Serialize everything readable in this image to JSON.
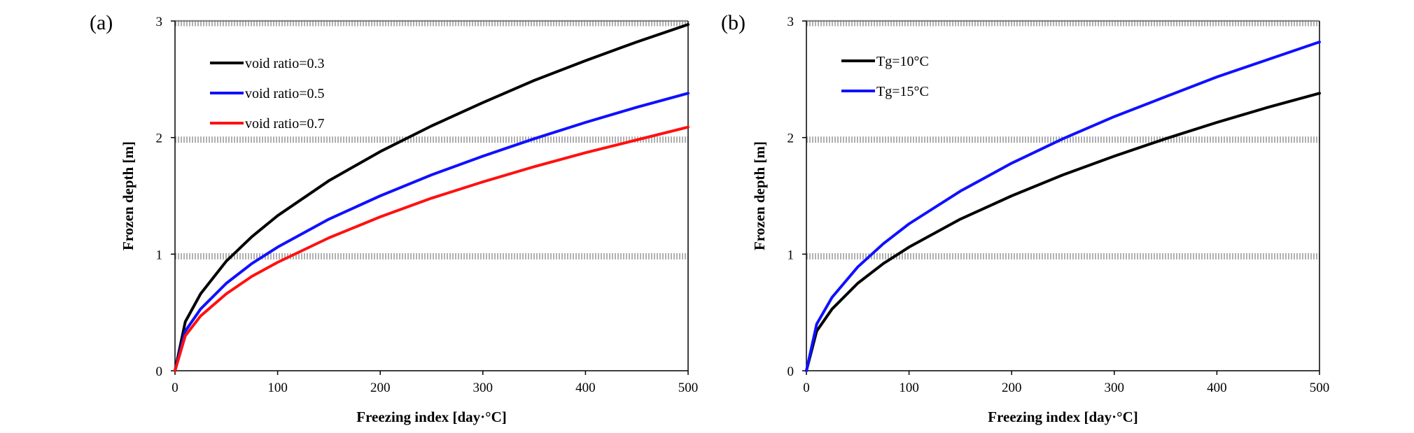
{
  "chart_data": [
    {
      "panel_label": "(a)",
      "type": "line",
      "title": "",
      "xlabel": "Freezing index [day·°C]",
      "ylabel": "Frozen depth [m]",
      "xlim": [
        0,
        500
      ],
      "ylim": [
        0,
        3
      ],
      "xticks": [
        "0",
        "100",
        "200",
        "300",
        "400",
        "500"
      ],
      "yticks": [
        "0",
        "1",
        "2",
        "3"
      ],
      "grid": "horizontal dotted at 1, 2, 3",
      "legend_position": "top-left",
      "series": [
        {
          "name": "void ratio=0.3",
          "color": "#000000",
          "x": [
            0,
            10,
            25,
            50,
            75,
            100,
            150,
            200,
            250,
            300,
            350,
            400,
            450,
            500
          ],
          "y": [
            0,
            0.42,
            0.66,
            0.94,
            1.15,
            1.33,
            1.63,
            1.88,
            2.1,
            2.3,
            2.49,
            2.66,
            2.82,
            2.97
          ]
        },
        {
          "name": "void ratio=0.5",
          "color": "#1010ff",
          "x": [
            0,
            10,
            25,
            50,
            75,
            100,
            150,
            200,
            250,
            300,
            350,
            400,
            450,
            500
          ],
          "y": [
            0,
            0.34,
            0.53,
            0.75,
            0.92,
            1.06,
            1.3,
            1.5,
            1.68,
            1.84,
            1.99,
            2.13,
            2.26,
            2.38
          ]
        },
        {
          "name": "void ratio=0.7",
          "color": "#ff1010",
          "x": [
            0,
            10,
            25,
            50,
            75,
            100,
            150,
            200,
            250,
            300,
            350,
            400,
            450,
            500
          ],
          "y": [
            0,
            0.3,
            0.47,
            0.66,
            0.81,
            0.93,
            1.14,
            1.32,
            1.48,
            1.62,
            1.75,
            1.87,
            1.98,
            2.09
          ]
        }
      ]
    },
    {
      "panel_label": "(b)",
      "type": "line",
      "title": "",
      "xlabel": "Freezing index [day·°C]",
      "ylabel": "Frozen depth [m]",
      "xlim": [
        0,
        500
      ],
      "ylim": [
        0,
        3
      ],
      "xticks": [
        "0",
        "100",
        "200",
        "300",
        "400",
        "500"
      ],
      "yticks": [
        "0",
        "1",
        "2",
        "3"
      ],
      "grid": "horizontal dotted at 1, 2, 3",
      "legend_position": "top-left",
      "series": [
        {
          "name": "Tg=10°C",
          "color": "#000000",
          "x": [
            0,
            10,
            25,
            50,
            75,
            100,
            150,
            200,
            250,
            300,
            350,
            400,
            450,
            500
          ],
          "y": [
            0,
            0.34,
            0.53,
            0.75,
            0.92,
            1.06,
            1.3,
            1.5,
            1.68,
            1.84,
            1.99,
            2.13,
            2.26,
            2.38
          ]
        },
        {
          "name": "Tg=15°C",
          "color": "#1010ff",
          "x": [
            0,
            10,
            25,
            50,
            75,
            100,
            150,
            200,
            250,
            300,
            350,
            400,
            450,
            500
          ],
          "y": [
            0,
            0.4,
            0.63,
            0.89,
            1.09,
            1.26,
            1.54,
            1.78,
            1.99,
            2.18,
            2.35,
            2.52,
            2.67,
            2.82
          ]
        }
      ]
    }
  ]
}
